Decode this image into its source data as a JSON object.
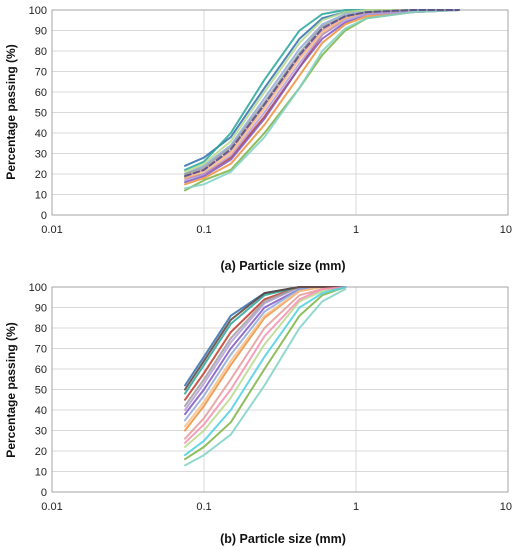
{
  "chart_data": [
    {
      "type": "line",
      "panel": "a",
      "xscale": "log",
      "xlim": [
        0.01,
        10
      ],
      "ylim": [
        0,
        100
      ],
      "xticks": [
        "0.01",
        "0.1",
        "1",
        "10"
      ],
      "yticks": [
        "0",
        "10",
        "20",
        "30",
        "40",
        "50",
        "60",
        "70",
        "80",
        "90",
        "100"
      ],
      "xlabel": "(a) Particle size (mm)",
      "ylabel": "Percentage passing (%)",
      "grid": true,
      "legend": "none",
      "series": [
        {
          "color": "#2f6fad",
          "x": [
            0.075,
            0.1,
            0.15,
            0.25,
            0.425,
            0.6,
            0.85,
            1.18,
            2.36,
            4.75
          ],
          "y": [
            24,
            28,
            38,
            62,
            86,
            96,
            99,
            100,
            100,
            100
          ]
        },
        {
          "color": "#c0392b",
          "x": [
            0.075,
            0.1,
            0.15,
            0.25,
            0.425,
            0.6,
            0.85,
            1.18,
            2.36,
            4.75
          ],
          "y": [
            18,
            20,
            28,
            48,
            72,
            88,
            96,
            99,
            100,
            100
          ]
        },
        {
          "color": "#7cb342",
          "x": [
            0.075,
            0.1,
            0.15,
            0.25,
            0.425,
            0.6,
            0.85,
            1.18,
            2.36,
            4.75
          ],
          "y": [
            12,
            17,
            22,
            40,
            62,
            78,
            90,
            96,
            99,
            100
          ]
        },
        {
          "color": "#7e57c2",
          "x": [
            0.075,
            0.1,
            0.15,
            0.25,
            0.425,
            0.6,
            0.85,
            1.18,
            2.36,
            4.75
          ],
          "y": [
            16,
            19,
            27,
            47,
            72,
            86,
            94,
            98,
            99,
            100
          ]
        },
        {
          "color": "#26a69a",
          "x": [
            0.075,
            0.1,
            0.15,
            0.25,
            0.425,
            0.6,
            0.85,
            1.18,
            2.36,
            4.75
          ],
          "y": [
            22,
            26,
            40,
            66,
            90,
            98,
            100,
            100,
            100,
            100
          ]
        },
        {
          "color": "#ef8f3a",
          "x": [
            0.075,
            0.1,
            0.15,
            0.25,
            0.425,
            0.6,
            0.85,
            1.18,
            2.36,
            4.75
          ],
          "y": [
            15,
            18,
            25,
            44,
            68,
            84,
            93,
            97,
            99,
            100
          ]
        },
        {
          "color": "#8fa8d8",
          "x": [
            0.075,
            0.1,
            0.15,
            0.25,
            0.425,
            0.6,
            0.85,
            1.18,
            2.36,
            4.75
          ],
          "y": [
            20,
            24,
            34,
            57,
            81,
            93,
            98,
            100,
            100,
            100
          ]
        },
        {
          "color": "#e59a9a",
          "x": [
            0.075,
            0.1,
            0.15,
            0.25,
            0.425,
            0.6,
            0.85,
            1.18,
            2.36,
            4.75
          ],
          "y": [
            19,
            22,
            31,
            53,
            77,
            90,
            97,
            99,
            100,
            100
          ]
        },
        {
          "color": "#b8d98a",
          "x": [
            0.075,
            0.1,
            0.15,
            0.25,
            0.425,
            0.6,
            0.85,
            1.18,
            2.36,
            4.75
          ],
          "y": [
            21,
            25,
            36,
            60,
            84,
            95,
            99,
            100,
            100,
            100
          ]
        },
        {
          "color": "#b39ddb",
          "x": [
            0.075,
            0.1,
            0.15,
            0.25,
            0.425,
            0.6,
            0.85,
            1.18,
            2.36,
            4.75
          ],
          "y": [
            17,
            20,
            29,
            50,
            74,
            88,
            95,
            98,
            99,
            100
          ]
        },
        {
          "color": "#7fd1c6",
          "x": [
            0.075,
            0.1,
            0.15,
            0.25,
            0.425,
            0.6,
            0.85,
            1.18,
            2.36,
            4.75
          ],
          "y": [
            13,
            15,
            21,
            38,
            62,
            80,
            91,
            96,
            99,
            100
          ]
        },
        {
          "color": "#f6c08a",
          "x": [
            0.075,
            0.1,
            0.15,
            0.25,
            0.425,
            0.6,
            0.85,
            1.18,
            2.36,
            4.75
          ],
          "y": [
            18,
            21,
            30,
            52,
            76,
            89,
            96,
            99,
            100,
            100
          ]
        },
        {
          "color": "#9e9e9e",
          "x": [
            0.075,
            0.1,
            0.15,
            0.25,
            0.425,
            0.6,
            0.85,
            1.18,
            2.36,
            4.75
          ],
          "y": [
            20,
            23,
            33,
            55,
            79,
            92,
            97,
            99,
            100,
            100
          ]
        },
        {
          "color": "#4a4a8a",
          "dashed": true,
          "x": [
            0.075,
            0.1,
            0.15,
            0.25,
            0.425,
            0.6,
            0.85,
            1.18,
            2.36,
            4.75
          ],
          "y": [
            19,
            22,
            32,
            54,
            78,
            91,
            97,
            99,
            100,
            100
          ]
        }
      ]
    },
    {
      "type": "line",
      "panel": "b",
      "xscale": "log",
      "xlim": [
        0.01,
        10
      ],
      "ylim": [
        0,
        100
      ],
      "xticks": [
        "0.01",
        "0.1",
        "1",
        "10"
      ],
      "yticks": [
        "0",
        "10",
        "20",
        "30",
        "40",
        "50",
        "60",
        "70",
        "80",
        "90",
        "100"
      ],
      "xlabel": "(b) Particle size (mm)",
      "ylabel": "Percentage passing (%)",
      "grid": true,
      "legend": "none",
      "series": [
        {
          "color": "#2f6fad",
          "x": [
            0.075,
            0.1,
            0.15,
            0.25,
            0.425,
            0.6,
            0.85
          ],
          "y": [
            52,
            66,
            86,
            97,
            100,
            100,
            100
          ]
        },
        {
          "color": "#c0392b",
          "x": [
            0.075,
            0.1,
            0.15,
            0.25,
            0.425,
            0.6,
            0.85
          ],
          "y": [
            45,
            58,
            78,
            94,
            100,
            100,
            100
          ]
        },
        {
          "color": "#7cb342",
          "x": [
            0.075,
            0.1,
            0.15,
            0.25,
            0.425,
            0.6,
            0.85
          ],
          "y": [
            16,
            22,
            34,
            60,
            86,
            96,
            100
          ]
        },
        {
          "color": "#7e57c2",
          "x": [
            0.075,
            0.1,
            0.15,
            0.25,
            0.425,
            0.6,
            0.85
          ],
          "y": [
            38,
            50,
            70,
            90,
            99,
            100,
            100
          ]
        },
        {
          "color": "#26a69a",
          "x": [
            0.075,
            0.1,
            0.15,
            0.25,
            0.425,
            0.6,
            0.85
          ],
          "y": [
            48,
            62,
            82,
            96,
            100,
            100,
            100
          ]
        },
        {
          "color": "#ef8f3a",
          "x": [
            0.075,
            0.1,
            0.15,
            0.25,
            0.425,
            0.6,
            0.85
          ],
          "y": [
            30,
            42,
            62,
            85,
            98,
            100,
            100
          ]
        },
        {
          "color": "#8fa8d8",
          "x": [
            0.075,
            0.1,
            0.15,
            0.25,
            0.425,
            0.6,
            0.85
          ],
          "y": [
            35,
            47,
            67,
            88,
            99,
            100,
            100
          ]
        },
        {
          "color": "#e59a9a",
          "x": [
            0.075,
            0.1,
            0.15,
            0.25,
            0.425,
            0.6,
            0.85
          ],
          "y": [
            26,
            36,
            55,
            80,
            96,
            99,
            100
          ]
        },
        {
          "color": "#b8d98a",
          "x": [
            0.075,
            0.1,
            0.15,
            0.25,
            0.425,
            0.6,
            0.85
          ],
          "y": [
            22,
            30,
            46,
            72,
            93,
            98,
            100
          ]
        },
        {
          "color": "#b39ddb",
          "x": [
            0.075,
            0.1,
            0.15,
            0.25,
            0.425,
            0.6,
            0.85
          ],
          "y": [
            40,
            53,
            73,
            92,
            100,
            100,
            100
          ]
        },
        {
          "color": "#7fd1c6",
          "x": [
            0.075,
            0.1,
            0.15,
            0.25,
            0.425,
            0.6,
            0.85
          ],
          "y": [
            13,
            18,
            28,
            52,
            80,
            93,
            99
          ]
        },
        {
          "color": "#f6c08a",
          "x": [
            0.075,
            0.1,
            0.15,
            0.25,
            0.425,
            0.6,
            0.85
          ],
          "y": [
            32,
            44,
            64,
            86,
            98,
            100,
            100
          ]
        },
        {
          "color": "#9e9e9e",
          "x": [
            0.075,
            0.1,
            0.15,
            0.25,
            0.425,
            0.6,
            0.85
          ],
          "y": [
            42,
            55,
            75,
            93,
            100,
            100,
            100
          ]
        },
        {
          "color": "#5d4037",
          "x": [
            0.075,
            0.1,
            0.15,
            0.25,
            0.425,
            0.6,
            0.85
          ],
          "y": [
            50,
            64,
            84,
            97,
            100,
            100,
            100
          ]
        },
        {
          "color": "#f48fb1",
          "x": [
            0.075,
            0.1,
            0.15,
            0.25,
            0.425,
            0.6,
            0.85
          ],
          "y": [
            24,
            33,
            50,
            76,
            94,
            99,
            100
          ]
        },
        {
          "color": "#4dd0e1",
          "x": [
            0.075,
            0.1,
            0.15,
            0.25,
            0.425,
            0.6,
            0.85
          ],
          "y": [
            18,
            25,
            40,
            66,
            90,
            97,
            100
          ]
        }
      ]
    }
  ]
}
